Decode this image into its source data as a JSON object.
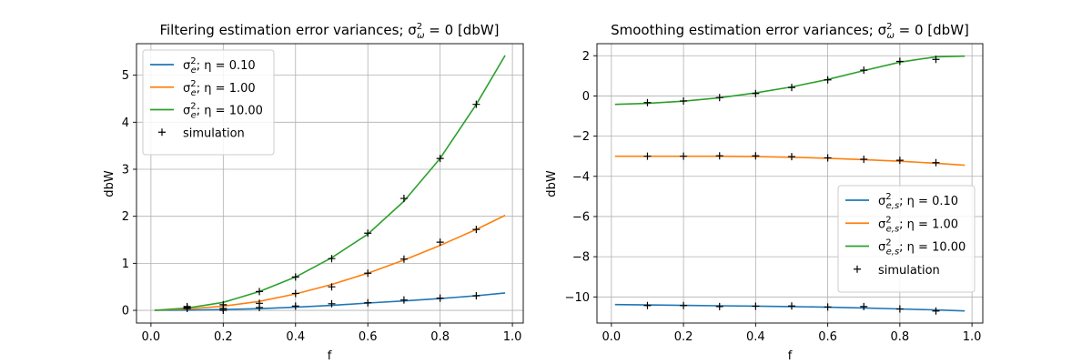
{
  "chart_data": [
    {
      "type": "line",
      "title": "Filtering estimation error variances; σ²ω = 0 [dbW]",
      "title_parts": {
        "prefix": "Filtering estimation error variances; σ",
        "sup": "2",
        "sub": "ω",
        "suffix": " = 0 [dbW]"
      },
      "xlabel": "f",
      "ylabel": "dbW",
      "xlim": [
        -0.04,
        1.03
      ],
      "ylim": [
        -0.27,
        5.67
      ],
      "xticks": [
        0.0,
        0.2,
        0.4,
        0.6,
        0.8,
        1.0
      ],
      "xtick_labels": [
        "0.0",
        "0.2",
        "0.4",
        "0.6",
        "0.8",
        "1.0"
      ],
      "yticks": [
        0,
        1,
        2,
        3,
        4,
        5
      ],
      "ytick_labels": [
        "0",
        "1",
        "2",
        "3",
        "4",
        "5"
      ],
      "grid": true,
      "legend_position": "top-left",
      "x": [
        0.01,
        0.1,
        0.2,
        0.3,
        0.4,
        0.5,
        0.6,
        0.7,
        0.8,
        0.9,
        0.98
      ],
      "series": [
        {
          "name": "σ²e; η = 0.10",
          "color": "#1f77b4",
          "values": [
            0.0,
            0.004,
            0.016,
            0.036,
            0.066,
            0.105,
            0.155,
            0.2,
            0.25,
            0.31,
            0.37
          ]
        },
        {
          "name": "σ²e; η = 1.00",
          "color": "#ff7f0e",
          "values": [
            0.0,
            0.03,
            0.09,
            0.19,
            0.35,
            0.55,
            0.79,
            1.07,
            1.38,
            1.72,
            2.02
          ]
        },
        {
          "name": "σ²e; η = 10.00",
          "color": "#2ca02c",
          "values": [
            0.0,
            0.05,
            0.17,
            0.4,
            0.71,
            1.12,
            1.62,
            2.32,
            3.23,
            4.38,
            5.42
          ]
        }
      ],
      "simulation": {
        "name": "simulation",
        "x": [
          0.1,
          0.1,
          0.1,
          0.2,
          0.2,
          0.2,
          0.3,
          0.3,
          0.3,
          0.4,
          0.4,
          0.4,
          0.5,
          0.5,
          0.5,
          0.6,
          0.6,
          0.6,
          0.7,
          0.7,
          0.7,
          0.8,
          0.8,
          0.8,
          0.9,
          0.9,
          0.9
        ],
        "y": [
          0.04,
          0.06,
          0.08,
          0.0,
          0.04,
          0.12,
          0.06,
          0.15,
          0.4,
          0.09,
          0.36,
          0.71,
          0.14,
          0.5,
          1.1,
          0.16,
          0.79,
          1.64,
          0.22,
          1.09,
          2.38,
          0.26,
          1.45,
          3.23,
          0.31,
          1.72,
          4.38
        ]
      }
    },
    {
      "type": "line",
      "title": "Smoothing estimation error variances; σ²ω = 0 [dbW]",
      "title_parts": {
        "prefix": "Smoothing estimation error variances; σ",
        "sup": "2",
        "sub": "ω",
        "suffix": " = 0 [dbW]"
      },
      "xlabel": "f",
      "ylabel": "dbW",
      "xlim": [
        -0.04,
        1.03
      ],
      "ylim": [
        -11.3,
        2.6
      ],
      "xticks": [
        0.0,
        0.2,
        0.4,
        0.6,
        0.8,
        1.0
      ],
      "xtick_labels": [
        "0.0",
        "0.2",
        "0.4",
        "0.6",
        "0.8",
        "1.0"
      ],
      "yticks": [
        -10,
        -8,
        -6,
        -4,
        -2,
        0,
        2
      ],
      "ytick_labels": [
        "−10",
        "−8",
        "−6",
        "−4",
        "−2",
        "0",
        "2"
      ],
      "grid": true,
      "legend_position": "lower-right",
      "x": [
        0.01,
        0.1,
        0.2,
        0.3,
        0.4,
        0.5,
        0.6,
        0.7,
        0.8,
        0.9,
        0.98
      ],
      "series": [
        {
          "name": "σ²e,s; η = 0.10",
          "color": "#1f77b4",
          "values": [
            -10.38,
            -10.4,
            -10.42,
            -10.44,
            -10.46,
            -10.48,
            -10.51,
            -10.55,
            -10.6,
            -10.65,
            -10.7
          ]
        },
        {
          "name": "σ²e,s; η = 1.00",
          "color": "#ff7f0e",
          "values": [
            -3.0,
            -3.0,
            -3.0,
            -3.0,
            -3.02,
            -3.05,
            -3.1,
            -3.17,
            -3.25,
            -3.35,
            -3.45
          ]
        },
        {
          "name": "σ²e,s; η = 10.00",
          "color": "#2ca02c",
          "values": [
            -0.42,
            -0.37,
            -0.26,
            -0.09,
            0.15,
            0.45,
            0.82,
            1.26,
            1.68,
            1.95,
            1.98
          ]
        }
      ],
      "simulation": {
        "name": "simulation",
        "x": [
          0.1,
          0.1,
          0.1,
          0.2,
          0.2,
          0.2,
          0.3,
          0.3,
          0.3,
          0.4,
          0.4,
          0.4,
          0.5,
          0.5,
          0.5,
          0.6,
          0.6,
          0.6,
          0.7,
          0.7,
          0.7,
          0.8,
          0.8,
          0.8,
          0.9,
          0.9,
          0.9
        ],
        "y": [
          -10.43,
          -3.0,
          -0.33,
          -10.43,
          -3.0,
          -0.25,
          -10.48,
          -2.98,
          -0.08,
          -10.46,
          -2.98,
          0.12,
          -10.45,
          -3.02,
          0.42,
          -10.5,
          -3.08,
          0.8,
          -10.48,
          -3.15,
          1.28,
          -10.6,
          -3.2,
          1.72,
          -10.7,
          -3.32,
          1.82
        ]
      }
    }
  ]
}
